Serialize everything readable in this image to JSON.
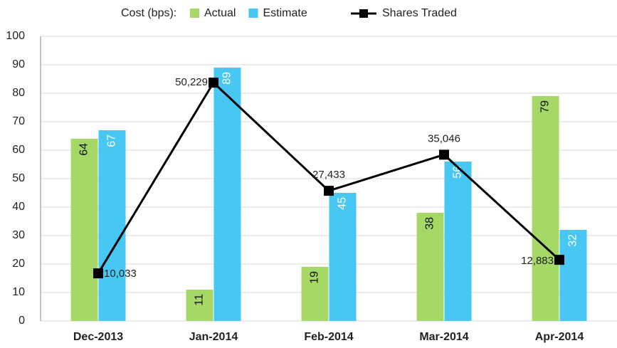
{
  "chart_data": {
    "type": "bar_line",
    "legend_title": "Cost (bps):",
    "categories": [
      "Dec-2013",
      "Jan-2014",
      "Feb-2014",
      "Mar-2014",
      "Apr-2014"
    ],
    "series": [
      {
        "name": "Actual",
        "type": "bar",
        "color": "#a5d867",
        "values": [
          64,
          11,
          19,
          38,
          79
        ]
      },
      {
        "name": "Estimate",
        "type": "bar",
        "color": "#47c7f1",
        "values": [
          67,
          89,
          45,
          56,
          32
        ]
      },
      {
        "name": "Shares Traded",
        "type": "line",
        "axis": "y2",
        "color": "#000000",
        "values": [
          10033,
          50229,
          27433,
          35046,
          12883
        ],
        "value_labels": [
          "10,033",
          "50,229",
          "27,433",
          "35,046",
          "12,883"
        ]
      }
    ],
    "ylim": [
      0,
      100
    ],
    "yticks": [
      0,
      10,
      20,
      30,
      40,
      50,
      60,
      70,
      80,
      90,
      100
    ],
    "y2lim": [
      0,
      60000
    ],
    "grid": true,
    "legend": "top"
  }
}
